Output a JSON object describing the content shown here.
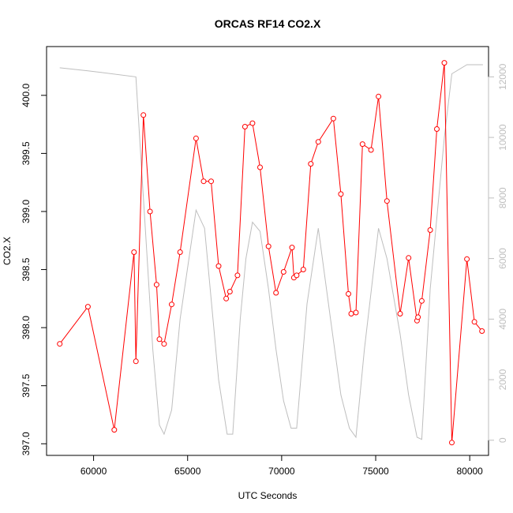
{
  "chart_data": {
    "type": "line",
    "title": "ORCAS RF14 CO2.X",
    "xlabel": "UTC Seconds",
    "ylabel": "CO2.X",
    "xlim": [
      57500,
      81000
    ],
    "ylim": [
      396.9,
      400.42
    ],
    "y2lim": [
      -500,
      13000
    ],
    "x_ticks": [
      60000,
      65000,
      70000,
      75000,
      80000
    ],
    "y_ticks": [
      397.0,
      397.5,
      398.0,
      398.5,
      399.0,
      399.5,
      400.0
    ],
    "y2_ticks": [
      0,
      2000,
      4000,
      6000,
      8000,
      10000,
      12000
    ],
    "x_tick_labels": [
      "60000",
      "65000",
      "70000",
      "75000",
      "80000"
    ],
    "y_tick_labels": [
      "397.0",
      "397.5",
      "398.0",
      "398.5",
      "399.0",
      "399.5",
      "400.0"
    ],
    "y2_tick_labels": [
      "0",
      "2000",
      "4000",
      "6000",
      "8000",
      "10000",
      "12000"
    ],
    "colors": {
      "co2": "#ff0000",
      "altitude": "#bebebe"
    },
    "grid": false,
    "series": [
      {
        "axis": "left",
        "style": "line+points",
        "color": "#ff0000",
        "x": [
          58200,
          59700,
          61100,
          62150,
          62250,
          62650,
          63000,
          63350,
          63500,
          63750,
          64150,
          64600,
          65450,
          65850,
          66250,
          66650,
          67050,
          67250,
          67650,
          68050,
          68450,
          68850,
          69300,
          69700,
          70100,
          70550,
          70650,
          70800,
          71150,
          71550,
          71950,
          72750,
          73150,
          73550,
          73700,
          73950,
          74300,
          74750,
          75150,
          75600,
          76300,
          76750,
          77200,
          77250,
          77450,
          77900,
          78250,
          78650,
          79050,
          79850,
          80250,
          80650
        ],
        "y": [
          397.86,
          398.18,
          397.12,
          398.65,
          397.71,
          399.83,
          399.0,
          398.37,
          397.9,
          397.86,
          398.2,
          398.65,
          399.63,
          399.26,
          399.26,
          398.53,
          398.25,
          398.31,
          398.45,
          399.73,
          399.76,
          399.38,
          398.7,
          398.3,
          398.48,
          398.69,
          398.43,
          398.45,
          398.5,
          399.41,
          399.6,
          399.8,
          399.15,
          398.29,
          398.12,
          398.13,
          399.58,
          399.53,
          399.99,
          399.09,
          398.12,
          398.6,
          398.06,
          398.09,
          398.23,
          398.84,
          399.71,
          400.28,
          397.01,
          398.59,
          398.05,
          397.97
        ]
      },
      {
        "axis": "right",
        "style": "line",
        "color": "#bebebe",
        "x": [
          58200,
          59700,
          62250,
          62500,
          62800,
          63150,
          63500,
          63750,
          64150,
          64600,
          65450,
          65900,
          66650,
          67100,
          67400,
          67800,
          68100,
          68450,
          68850,
          69300,
          69700,
          70100,
          70500,
          70800,
          71350,
          71950,
          72600,
          73150,
          73600,
          73950,
          74400,
          75150,
          75600,
          76300,
          76750,
          77200,
          77450,
          77900,
          78650,
          79050,
          79850,
          80700
        ],
        "y": [
          12300,
          12200,
          12000,
          9500,
          6500,
          3000,
          500,
          200,
          1000,
          4000,
          7600,
          7000,
          2000,
          200,
          200,
          4000,
          6000,
          7200,
          6900,
          5000,
          3000,
          1300,
          400,
          400,
          4500,
          7000,
          4000,
          1500,
          400,
          100,
          3000,
          7000,
          6000,
          3500,
          1500,
          100,
          30,
          5000,
          10000,
          12100,
          12400,
          12400
        ]
      }
    ]
  }
}
